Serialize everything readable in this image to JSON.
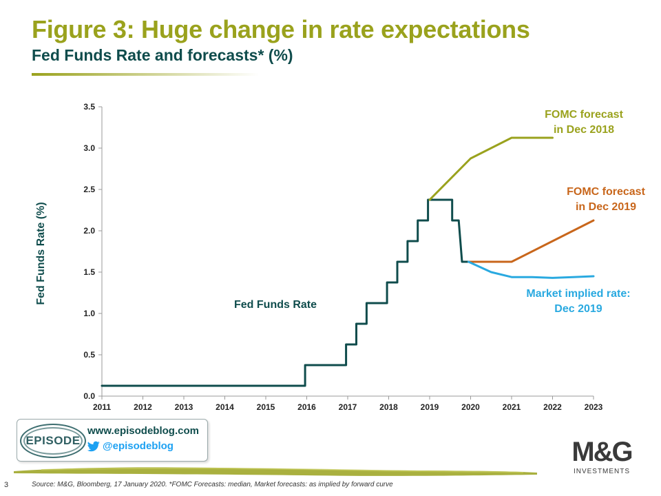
{
  "header": {
    "title": "Figure 3: Huge change in rate expectations",
    "subtitle": "Fed Funds Rate and forecasts* (%)"
  },
  "chart_data": {
    "type": "line",
    "ylabel": "Fed Funds Rate (%)",
    "xlabel": "",
    "xlim": [
      2011,
      2023
    ],
    "ylim": [
      0,
      3.5
    ],
    "x_ticks": [
      "2011",
      "2012",
      "2013",
      "2014",
      "2015",
      "2016",
      "2017",
      "2018",
      "2019",
      "2020",
      "2021",
      "2022",
      "2023"
    ],
    "y_ticks": [
      "0.0",
      "0.5",
      "1.0",
      "1.5",
      "2.0",
      "2.5",
      "3.0",
      "3.5"
    ],
    "grid": false,
    "series": [
      {
        "name": "Fed Funds Rate",
        "color": "#0f4c4c",
        "points": [
          [
            2011.0,
            0.125
          ],
          [
            2015.96,
            0.125
          ],
          [
            2015.96,
            0.375
          ],
          [
            2016.96,
            0.375
          ],
          [
            2016.96,
            0.625
          ],
          [
            2017.21,
            0.625
          ],
          [
            2017.21,
            0.875
          ],
          [
            2017.46,
            0.875
          ],
          [
            2017.46,
            1.125
          ],
          [
            2017.96,
            1.125
          ],
          [
            2017.96,
            1.375
          ],
          [
            2018.21,
            1.375
          ],
          [
            2018.21,
            1.625
          ],
          [
            2018.46,
            1.625
          ],
          [
            2018.46,
            1.875
          ],
          [
            2018.71,
            1.875
          ],
          [
            2018.71,
            2.125
          ],
          [
            2018.96,
            2.125
          ],
          [
            2018.96,
            2.375
          ],
          [
            2019.55,
            2.375
          ],
          [
            2019.55,
            2.125
          ],
          [
            2019.71,
            2.125
          ],
          [
            2019.79,
            1.625
          ],
          [
            2020.0,
            1.625
          ]
        ]
      },
      {
        "name": "FOMC forecast in Dec 2018",
        "color": "#9aa21d",
        "points": [
          [
            2019.0,
            2.375
          ],
          [
            2020.0,
            2.875
          ],
          [
            2021.0,
            3.125
          ],
          [
            2022.0,
            3.125
          ]
        ]
      },
      {
        "name": "FOMC forecast in Dec 2019",
        "color": "#c8661b",
        "points": [
          [
            2019.95,
            1.625
          ],
          [
            2021.0,
            1.625
          ],
          [
            2022.0,
            1.875
          ],
          [
            2023.0,
            2.125
          ]
        ]
      },
      {
        "name": "Market implied rate: Dec 2019",
        "color": "#29a9e0",
        "points": [
          [
            2019.95,
            1.625
          ],
          [
            2020.5,
            1.5
          ],
          [
            2021.0,
            1.44
          ],
          [
            2021.5,
            1.44
          ],
          [
            2022.0,
            1.43
          ],
          [
            2022.5,
            1.44
          ],
          [
            2023.0,
            1.45
          ]
        ]
      }
    ],
    "annotations": {
      "fed_funds": "Fed Funds Rate",
      "fomc18_line1": "FOMC forecast",
      "fomc18_line2": "in Dec 2018",
      "fomc19_line1": "FOMC forecast",
      "fomc19_line2": "in Dec 2019",
      "market_line1": "Market implied rate:",
      "market_line2": "Dec 2019"
    }
  },
  "episode_box": {
    "logo_text": "EPISODE",
    "url": "www.episodeblog.com",
    "twitter": "@episodeblog"
  },
  "logo": {
    "text": "M&G",
    "sub": "INVESTMENTS"
  },
  "footer": {
    "page_number": "3",
    "source": "Source: M&G, Bloomberg, 17 January 2020. *FOMC Forecasts: median, Market forecasts: as implied by forward curve"
  }
}
